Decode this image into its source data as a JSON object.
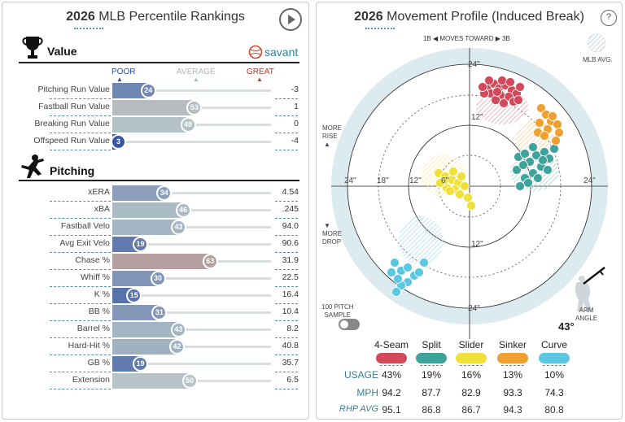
{
  "left": {
    "title_year": "2026",
    "title_rest": "MLB Percentile Rankings",
    "brand": "savant",
    "scale": {
      "poor": "POOR",
      "average": "AVERAGE",
      "great": "GREAT"
    },
    "value_section": {
      "title": "Value",
      "rows": [
        {
          "label": "Pitching Run Value",
          "pct": 24,
          "value": "-3"
        },
        {
          "label": "Fastball Run Value",
          "pct": 53,
          "value": "1"
        },
        {
          "label": "Breaking Run Value",
          "pct": 49,
          "value": "0"
        },
        {
          "label": "Offspeed Run Value",
          "pct": 3,
          "value": "-4"
        }
      ]
    },
    "pitching_section": {
      "title": "Pitching",
      "rows": [
        {
          "label": "xERA",
          "pct": 34,
          "value": "4.54"
        },
        {
          "label": "xBA",
          "pct": 46,
          "value": ".245"
        },
        {
          "label": "Fastball Velo",
          "pct": 43,
          "value": "94.0"
        },
        {
          "label": "Avg Exit Velo",
          "pct": 19,
          "value": "90.6"
        },
        {
          "label": "Chase %",
          "pct": 63,
          "value": "31.9"
        },
        {
          "label": "Whiff %",
          "pct": 30,
          "value": "22.5"
        },
        {
          "label": "K %",
          "pct": 15,
          "value": "16.4"
        },
        {
          "label": "BB %",
          "pct": 31,
          "value": "10.4"
        },
        {
          "label": "Barrel %",
          "pct": 43,
          "value": "8.2"
        },
        {
          "label": "Hard-Hit %",
          "pct": 42,
          "value": "40.8"
        },
        {
          "label": "GB %",
          "pct": 19,
          "value": "35.7"
        },
        {
          "label": "Extension",
          "pct": 50,
          "value": "6.5"
        }
      ]
    }
  },
  "right": {
    "title_year": "2026",
    "title_rest": "Movement Profile (Induced Break)",
    "help": "?",
    "moves_toward": {
      "left": "1B",
      "middle": "MOVES TOWARD",
      "right": "3B"
    },
    "mlb_avg": "MLB AVG.",
    "more_rise": [
      "MORE",
      "RISE"
    ],
    "more_drop": [
      "MORE",
      "DROP"
    ],
    "ring_labels": {
      "r24": "24\"",
      "r18": "18\"",
      "r12": "12\"",
      "r6": "6\""
    },
    "sample": [
      "100 PITCH",
      "SAMPLE"
    ],
    "arm_angle_label": [
      "ARM",
      "ANGLE"
    ],
    "arm_angle": "43°",
    "table": {
      "rows": [
        "USAGE",
        "MPH",
        "RHP AVG"
      ],
      "pitches": [
        {
          "name": "4-Seam",
          "color": "#d1495b",
          "usage": "43%",
          "mph": "94.2",
          "rhp": "95.1"
        },
        {
          "name": "Split",
          "color": "#3fa39c",
          "usage": "19%",
          "mph": "87.7",
          "rhp": "86.8"
        },
        {
          "name": "Slider",
          "color": "#efe13a",
          "usage": "16%",
          "mph": "82.9",
          "rhp": "86.7"
        },
        {
          "name": "Sinker",
          "color": "#f0a030",
          "usage": "13%",
          "mph": "93.3",
          "rhp": "94.3"
        },
        {
          "name": "Curve",
          "color": "#5cc7e0",
          "usage": "10%",
          "mph": "74.3",
          "rhp": "80.8"
        }
      ]
    }
  },
  "colors": {
    "poor": "#2f4f9f",
    "average": "#b6c4c8",
    "great": "#b03a2e"
  }
}
